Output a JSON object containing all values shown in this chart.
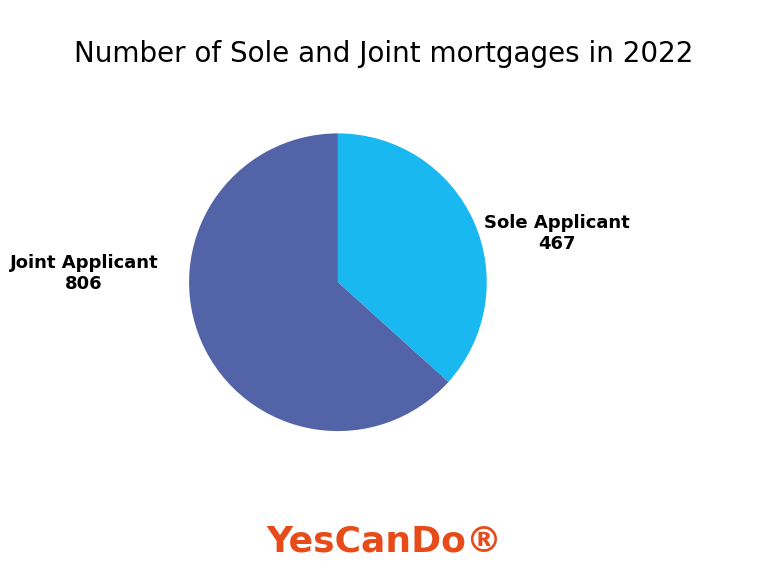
{
  "title": "Number of Sole and Joint mortgages in 2022",
  "title_fontsize": 20,
  "labels": [
    "Sole Applicant",
    "Joint Applicant"
  ],
  "values": [
    467,
    806
  ],
  "colors": [
    "#1ab8f0",
    "#5263a8"
  ],
  "label_texts_0": "Sole Applicant\n467",
  "label_texts_1": "Joint Applicant\n806",
  "brand_text": "YesCanDo®",
  "brand_color": "#e84b1a",
  "brand_fontsize": 26,
  "background_color": "#ffffff",
  "startangle": 90,
  "label_fontsize": 13
}
